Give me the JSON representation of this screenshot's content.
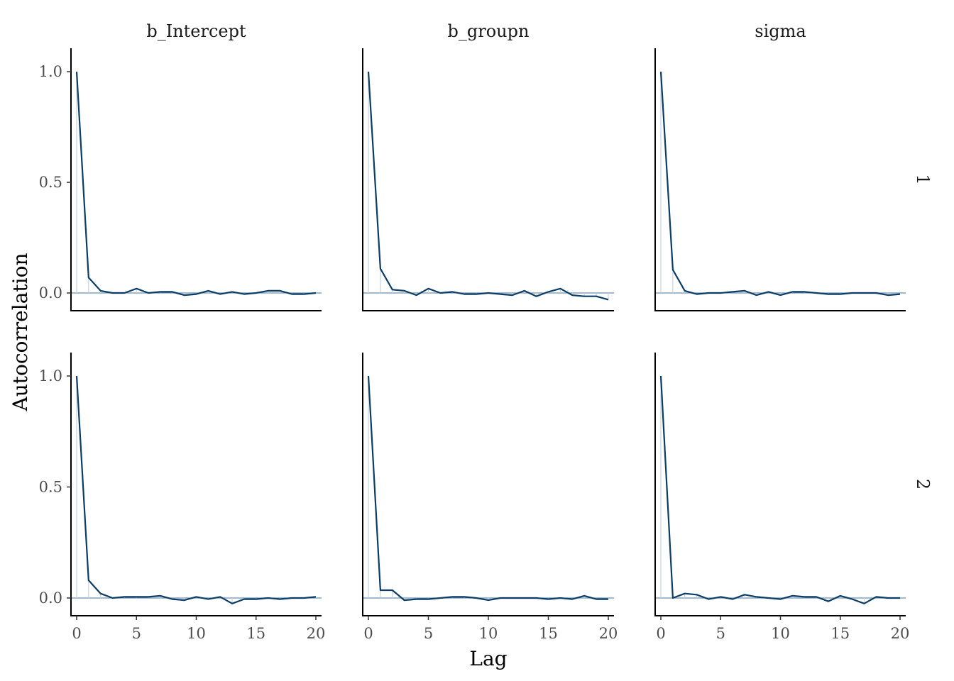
{
  "chart_data": {
    "type": "line",
    "xlabel": "Lag",
    "ylabel": "Autocorrelation",
    "xlim": [
      0,
      20
    ],
    "ylim": [
      -0.08,
      1.1
    ],
    "x_ticks": [
      0,
      5,
      10,
      15,
      20
    ],
    "y_ticks": [
      0.0,
      0.5,
      1.0
    ],
    "y_tick_labels": [
      "0.0",
      "0.5",
      "1.0"
    ],
    "columns": [
      "b_Intercept",
      "b_groupn",
      "sigma"
    ],
    "rows": [
      "1",
      "2"
    ],
    "grid": false,
    "lags": [
      0,
      1,
      2,
      3,
      4,
      5,
      6,
      7,
      8,
      9,
      10,
      11,
      12,
      13,
      14,
      15,
      16,
      17,
      18,
      19,
      20
    ],
    "panels": [
      {
        "row": "1",
        "column": "b_Intercept",
        "values": [
          1.0,
          0.07,
          0.01,
          0.0,
          0.0,
          0.02,
          0.0,
          0.005,
          0.005,
          -0.01,
          -0.005,
          0.01,
          -0.005,
          0.005,
          -0.005,
          0.0,
          0.01,
          0.01,
          -0.005,
          -0.005,
          0.0
        ]
      },
      {
        "row": "1",
        "column": "b_groupn",
        "values": [
          1.0,
          0.11,
          0.015,
          0.01,
          -0.01,
          0.02,
          0.0,
          0.005,
          -0.005,
          -0.005,
          0.0,
          -0.005,
          -0.01,
          0.01,
          -0.015,
          0.005,
          0.02,
          -0.01,
          -0.015,
          -0.015,
          -0.03
        ]
      },
      {
        "row": "1",
        "column": "sigma",
        "values": [
          1.0,
          0.105,
          0.01,
          -0.005,
          0.0,
          0.0,
          0.005,
          0.01,
          -0.01,
          0.005,
          -0.01,
          0.005,
          0.005,
          0.0,
          -0.005,
          -0.005,
          0.0,
          0.0,
          0.0,
          -0.01,
          -0.005
        ]
      },
      {
        "row": "2",
        "column": "b_Intercept",
        "values": [
          1.0,
          0.08,
          0.02,
          0.0,
          0.005,
          0.005,
          0.005,
          0.01,
          -0.005,
          -0.01,
          0.005,
          -0.005,
          0.005,
          -0.025,
          -0.005,
          -0.005,
          0.0,
          -0.005,
          0.0,
          0.0,
          0.005
        ]
      },
      {
        "row": "2",
        "column": "b_groupn",
        "values": [
          1.0,
          0.035,
          0.035,
          -0.01,
          -0.005,
          -0.005,
          0.0,
          0.005,
          0.005,
          0.0,
          -0.01,
          0.0,
          0.0,
          0.0,
          0.0,
          -0.005,
          0.0,
          -0.005,
          0.01,
          -0.005,
          -0.005
        ]
      },
      {
        "row": "2",
        "column": "sigma",
        "values": [
          1.0,
          0.0,
          0.02,
          0.015,
          -0.005,
          0.005,
          -0.005,
          0.015,
          0.005,
          0.0,
          -0.005,
          0.01,
          0.005,
          0.005,
          -0.015,
          0.01,
          -0.005,
          -0.025,
          0.005,
          0.0,
          0.0
        ]
      }
    ]
  }
}
